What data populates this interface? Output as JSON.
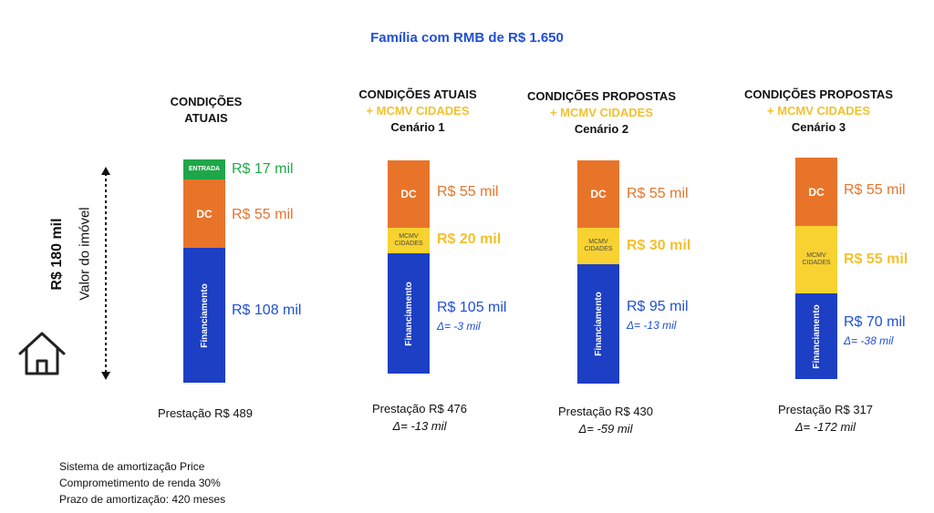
{
  "title": "Família com RMB de R$ 1.650",
  "axis": {
    "value_label": "R$ 180 mil",
    "desc_label": "Valor do imóvel"
  },
  "colors": {
    "entrada": "#1fa64a",
    "dc": "#e8742a",
    "mcmv": "#f7d231",
    "financiamento": "#1d3fc4"
  },
  "scenarios": [
    {
      "header": [
        "CONDIÇÕES",
        "ATUAIS"
      ],
      "segments": {
        "entrada": {
          "label": "ENTRADA",
          "value": "R$ 17 mil"
        },
        "dc": {
          "label": "DC",
          "value": "R$ 55 mil"
        },
        "financiamento": {
          "label": "Financiamento",
          "value": "R$ 108 mil"
        }
      },
      "prestacao": "Prestação R$ 489"
    },
    {
      "header": [
        "CONDIÇÕES ATUAIS",
        "+ MCMV CIDADES",
        "Cenário 1"
      ],
      "segments": {
        "dc": {
          "label": "DC",
          "value": "R$ 55 mil"
        },
        "mcmv": {
          "label": "MCMV CIDADES",
          "value": "R$ 20 mil"
        },
        "financiamento": {
          "label": "Financiamento",
          "value": "R$ 105 mil",
          "delta": "Δ= -3 mil"
        }
      },
      "prestacao": "Prestação R$ 476",
      "prestacao_delta": "Δ= -13 mil"
    },
    {
      "header": [
        "CONDIÇÕES PROPOSTAS",
        "+ MCMV CIDADES",
        "Cenário 2"
      ],
      "segments": {
        "dc": {
          "label": "DC",
          "value": "R$ 55 mil"
        },
        "mcmv": {
          "label": "MCMV CIDADES",
          "value": "R$ 30 mil"
        },
        "financiamento": {
          "label": "Financiamento",
          "value": "R$ 95 mil",
          "delta": "Δ= -13 mil"
        }
      },
      "prestacao": "Prestação R$ 430",
      "prestacao_delta": "Δ= -59 mil"
    },
    {
      "header": [
        "CONDIÇÕES PROPOSTAS",
        "+ MCMV CIDADES",
        "Cenário 3"
      ],
      "segments": {
        "dc": {
          "label": "DC",
          "value": "R$ 55 mil"
        },
        "mcmv": {
          "label": "MCMV CIDADES",
          "value": "R$ 55 mil"
        },
        "financiamento": {
          "label": "Financiamento",
          "value": "R$ 70 mil",
          "delta": "Δ= -38 mil"
        }
      },
      "prestacao": "Prestação R$ 317",
      "prestacao_delta": "Δ= -172 mil"
    }
  ],
  "notes": [
    "Sistema de amortização Price",
    "Comprometimento de renda 30%",
    "Prazo de amortização: 420 meses"
  ]
}
